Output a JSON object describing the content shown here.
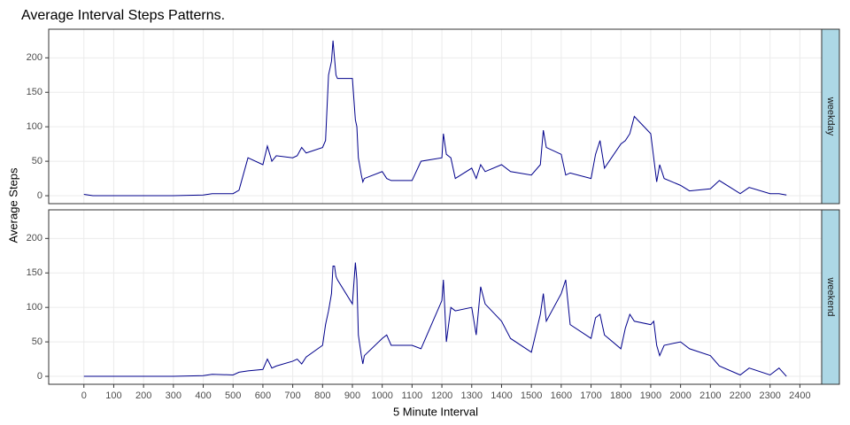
{
  "chart_data": {
    "type": "line",
    "title": "Average Interval Steps Patterns.",
    "xlabel": "5 Minute Interval",
    "ylabel": "Average Steps",
    "x": [
      0,
      30,
      100,
      200,
      300,
      400,
      430,
      500,
      520,
      550,
      600,
      615,
      630,
      645,
      700,
      715,
      730,
      745,
      800,
      810,
      820,
      830,
      835,
      840,
      845,
      850,
      900,
      910,
      915,
      920,
      930,
      935,
      940,
      1000,
      1015,
      1030,
      1100,
      1130,
      1200,
      1205,
      1215,
      1230,
      1245,
      1300,
      1315,
      1330,
      1345,
      1400,
      1430,
      1500,
      1530,
      1540,
      1550,
      1600,
      1615,
      1630,
      1700,
      1715,
      1730,
      1745,
      1800,
      1815,
      1830,
      1845,
      1900,
      1910,
      1920,
      1930,
      1945,
      2000,
      2030,
      2100,
      2130,
      2200,
      2230,
      2300,
      2330,
      2355
    ],
    "series": [
      {
        "name": "weekday",
        "color": "#00008b",
        "values": [
          2,
          0,
          0,
          0,
          0,
          1,
          3,
          3,
          8,
          55,
          45,
          72,
          50,
          58,
          55,
          58,
          70,
          62,
          70,
          80,
          175,
          195,
          225,
          200,
          175,
          170,
          170,
          110,
          100,
          55,
          30,
          20,
          25,
          35,
          25,
          22,
          22,
          50,
          55,
          90,
          60,
          55,
          25,
          40,
          25,
          45,
          35,
          45,
          35,
          30,
          45,
          95,
          70,
          60,
          30,
          33,
          25,
          60,
          80,
          40,
          75,
          80,
          90,
          115,
          90,
          55,
          20,
          45,
          25,
          15,
          7,
          10,
          22,
          3,
          12,
          3,
          3,
          1
        ]
      },
      {
        "name": "weekend",
        "color": "#00008b",
        "values": [
          0,
          0,
          0,
          0,
          0,
          1,
          3,
          2,
          6,
          8,
          10,
          25,
          12,
          15,
          22,
          25,
          18,
          28,
          45,
          75,
          95,
          120,
          160,
          160,
          145,
          140,
          105,
          165,
          140,
          60,
          30,
          18,
          30,
          55,
          60,
          45,
          45,
          40,
          110,
          140,
          50,
          100,
          95,
          100,
          60,
          130,
          105,
          80,
          55,
          35,
          90,
          120,
          80,
          120,
          140,
          75,
          55,
          85,
          90,
          60,
          40,
          70,
          90,
          80,
          75,
          80,
          45,
          30,
          45,
          50,
          40,
          30,
          15,
          2,
          12,
          2,
          12,
          0
        ]
      }
    ],
    "xlim": [
      -118,
      2473
    ],
    "xticks": [
      0,
      100,
      200,
      300,
      400,
      500,
      600,
      700,
      800,
      900,
      1000,
      1100,
      1200,
      1300,
      1400,
      1500,
      1600,
      1700,
      1800,
      1900,
      2000,
      2100,
      2200,
      2300,
      2400
    ],
    "ylim": [
      -11.5,
      241.5
    ],
    "yticks": [
      0,
      50,
      100,
      150,
      200
    ],
    "grid": true,
    "strip_color": "#add8e6"
  }
}
